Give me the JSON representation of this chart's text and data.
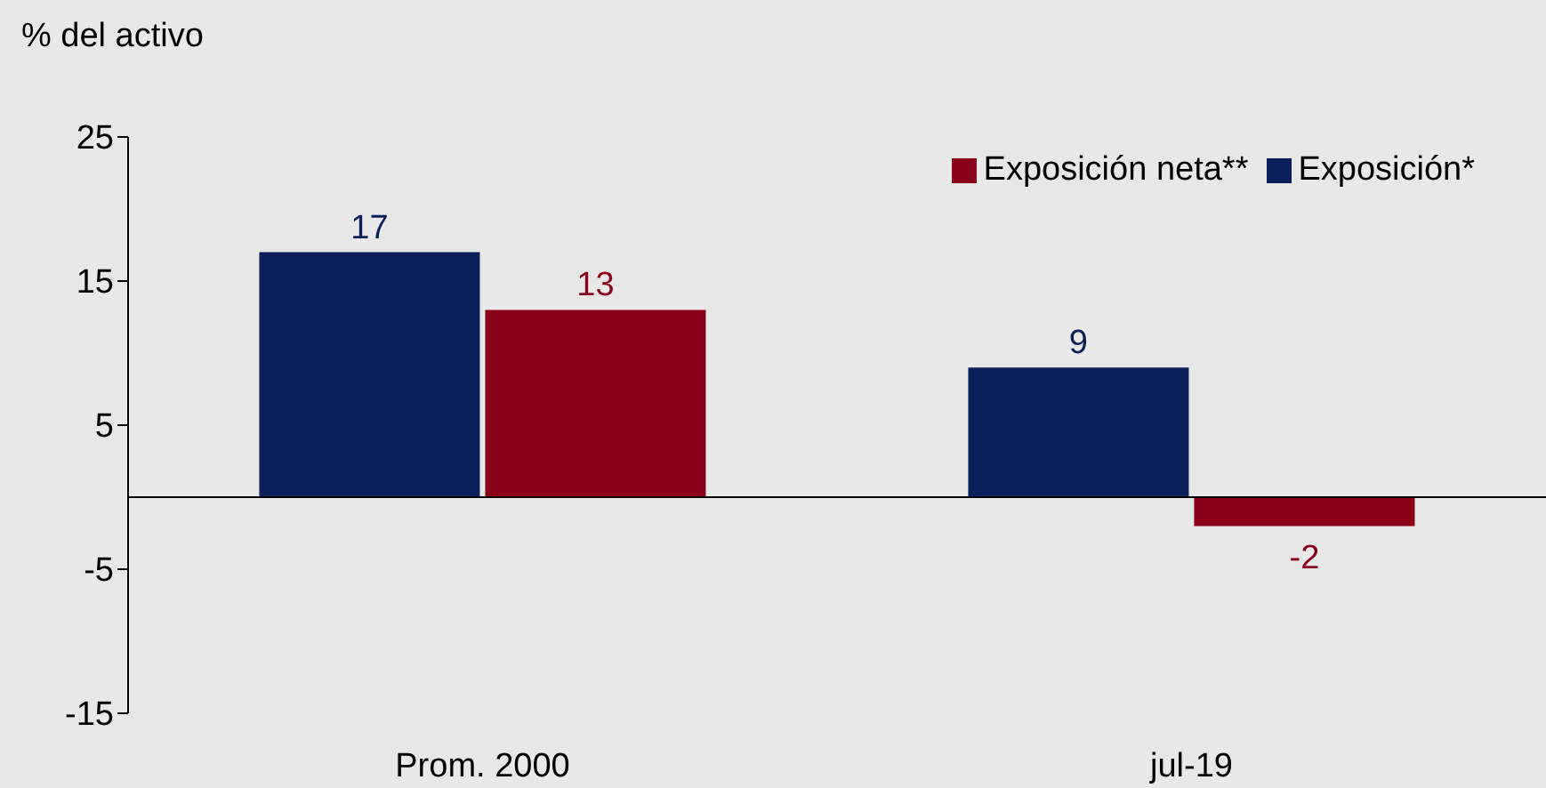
{
  "chart_data": {
    "type": "bar",
    "ylabel": "% del activo",
    "categories": [
      "Prom. 2000",
      "jul-19"
    ],
    "series": [
      {
        "name": "Exposición*",
        "color": "#0b1f5b",
        "values": [
          17,
          9
        ]
      },
      {
        "name": "Exposición neta**",
        "color": "#8a0019",
        "values": [
          13,
          -2
        ]
      }
    ],
    "ylim": [
      -15,
      25
    ],
    "yticks": [
      -15,
      -5,
      5,
      15,
      25
    ],
    "ref_lines": [
      {
        "axis": "y",
        "value": 0,
        "color": "#000000"
      }
    ],
    "data_labels": true,
    "grid": false,
    "legend": "top right"
  }
}
